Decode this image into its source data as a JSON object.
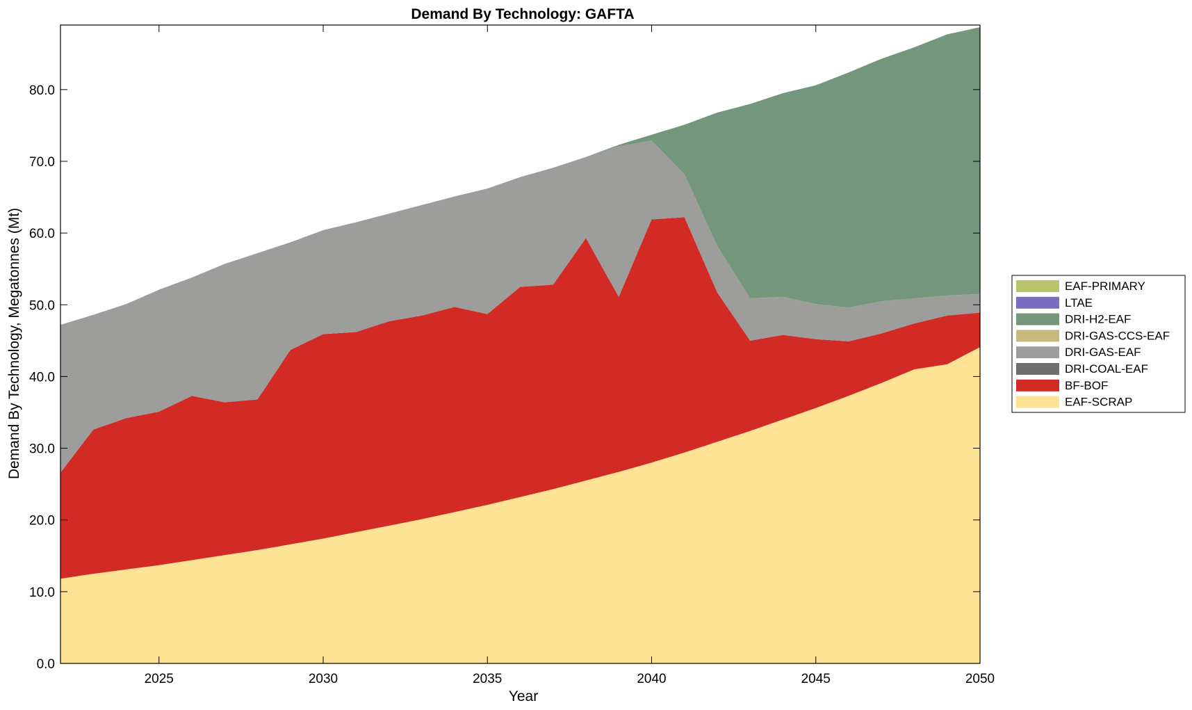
{
  "chart_data": {
    "type": "area",
    "stacked": true,
    "title": "Demand By Technology: GAFTA",
    "xlabel": "Year",
    "ylabel": "Demand By Technology, Megatonnes (Mt)",
    "xlim": [
      2022,
      2050
    ],
    "ylim": [
      0,
      89
    ],
    "xticks": [
      2025,
      2030,
      2035,
      2040,
      2045,
      2050
    ],
    "yticks": [
      0,
      10,
      20,
      30,
      40,
      50,
      60,
      70,
      80
    ],
    "ytick_format": "one-decimal",
    "grid": false,
    "legend_position": "right",
    "x": [
      2022,
      2023,
      2024,
      2025,
      2026,
      2027,
      2028,
      2029,
      2030,
      2031,
      2032,
      2033,
      2034,
      2035,
      2036,
      2037,
      2038,
      2039,
      2040,
      2041,
      2042,
      2043,
      2044,
      2045,
      2046,
      2047,
      2048,
      2049,
      2050
    ],
    "series": [
      {
        "name": "EAF-SCRAP",
        "color": "#fde393",
        "values": [
          11.8,
          12.5,
          13.1,
          13.7,
          14.4,
          15.1,
          15.8,
          16.6,
          17.4,
          18.3,
          19.2,
          20.1,
          21.1,
          22.1,
          23.2,
          24.3,
          25.5,
          26.7,
          28.0,
          29.4,
          30.9,
          32.4,
          34.0,
          35.6,
          37.3,
          39.1,
          41.0,
          41.7,
          44.1
        ]
      },
      {
        "name": "BF-BOF",
        "color": "#d22b25",
        "values": [
          14.8,
          20.1,
          21.1,
          21.4,
          22.9,
          21.3,
          21.0,
          27.1,
          28.5,
          27.9,
          28.5,
          28.4,
          28.6,
          26.6,
          29.3,
          28.5,
          33.8,
          24.4,
          33.9,
          32.8,
          20.8,
          12.6,
          11.8,
          9.6,
          7.6,
          6.9,
          6.4,
          6.8,
          4.8
        ]
      },
      {
        "name": "DRI-COAL-EAF",
        "color": "#6e6e6e",
        "values": [
          0,
          0,
          0,
          0,
          0,
          0,
          0,
          0,
          0,
          0,
          0,
          0,
          0,
          0,
          0,
          0,
          0,
          0,
          0,
          0,
          0,
          0,
          0,
          0,
          0,
          0,
          0,
          0,
          0
        ]
      },
      {
        "name": "DRI-GAS-EAF",
        "color": "#9d9d9b",
        "values": [
          20.6,
          16.0,
          15.9,
          17.0,
          16.5,
          19.3,
          20.4,
          15.0,
          14.5,
          15.3,
          15.0,
          15.4,
          15.4,
          17.5,
          15.3,
          16.3,
          11.3,
          21.0,
          11.0,
          6.0,
          6.5,
          5.9,
          5.3,
          4.9,
          4.7,
          4.5,
          3.5,
          2.8,
          2.6
        ]
      },
      {
        "name": "DRI-GAS-CCS-EAF",
        "color": "#c5b97f",
        "values": [
          0,
          0,
          0,
          0,
          0,
          0,
          0,
          0,
          0,
          0,
          0,
          0,
          0,
          0,
          0,
          0,
          0,
          0,
          0,
          0,
          0,
          0,
          0,
          0,
          0,
          0,
          0,
          0,
          0
        ]
      },
      {
        "name": "DRI-H2-EAF",
        "color": "#74977c",
        "values": [
          0,
          0,
          0,
          0,
          0,
          0,
          0,
          0,
          0,
          0,
          0,
          0,
          0,
          0,
          0,
          0,
          0,
          0.2,
          0.8,
          6.9,
          18.6,
          27.1,
          28.4,
          30.5,
          32.8,
          33.8,
          35.0,
          36.4,
          37.2
        ]
      },
      {
        "name": "LTAE",
        "color": "#7a6ec0",
        "values": [
          0,
          0,
          0,
          0,
          0,
          0,
          0,
          0,
          0,
          0,
          0,
          0,
          0,
          0,
          0,
          0,
          0,
          0,
          0,
          0,
          0,
          0,
          0,
          0,
          0,
          0,
          0,
          0,
          0
        ]
      },
      {
        "name": "EAF-PRIMARY",
        "color": "#b8c36a",
        "values": [
          0,
          0,
          0,
          0,
          0,
          0,
          0,
          0,
          0,
          0,
          0,
          0,
          0,
          0,
          0,
          0,
          0,
          0,
          0,
          0,
          0,
          0,
          0,
          0,
          0,
          0,
          0,
          0,
          0
        ]
      }
    ],
    "legend_order": [
      "EAF-PRIMARY",
      "LTAE",
      "DRI-H2-EAF",
      "DRI-GAS-CCS-EAF",
      "DRI-GAS-EAF",
      "DRI-COAL-EAF",
      "BF-BOF",
      "EAF-SCRAP"
    ]
  }
}
